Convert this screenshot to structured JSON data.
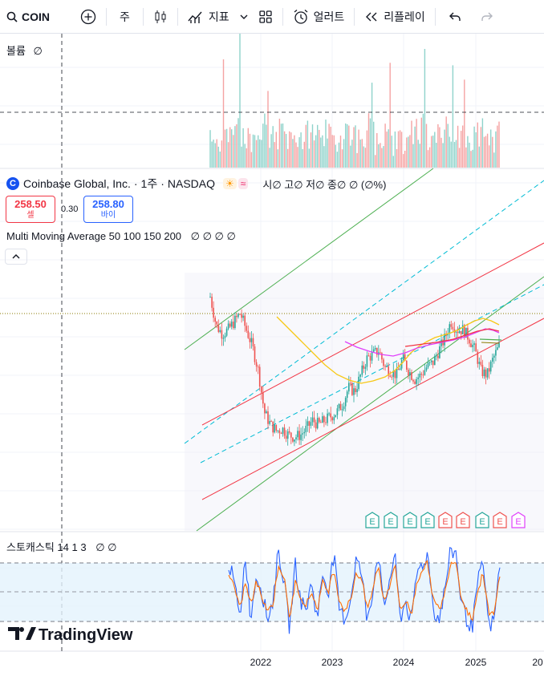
{
  "toolbar": {
    "symbol": "COIN",
    "interval": "주",
    "indicators": "지표",
    "alert": "얼러트",
    "replay": "리플레이"
  },
  "volume_pane": {
    "label": "볼륨",
    "value": "∅"
  },
  "main_header": {
    "name": "Coinbase Global, Inc.",
    "interval": "1주",
    "exchange": "NASDAQ",
    "ohlc": "시∅ 고∅ 저∅ 종∅ ∅ (∅%)",
    "sell_price": "258.50",
    "sell_label": "셀",
    "spread": "0.30",
    "buy_price": "258.80",
    "buy_label": "바이",
    "ma_label": "Multi Moving Average 50 100 150 200",
    "ma_values": "∅ ∅ ∅ ∅"
  },
  "stoch_pane": {
    "label": "스토캐스틱 14 1 3",
    "values": "∅ ∅"
  },
  "earnings_markers": [
    "E",
    "E",
    "E",
    "E",
    "E",
    "E",
    "E",
    "E",
    "E"
  ],
  "branding": "TradingView",
  "colors": {
    "up": "#26a69a",
    "down": "#ef5350",
    "channel_red": "#f23645",
    "channel_green": "#4caf50",
    "channel_blue": "#00bcd4",
    "ma50": "#f7c815",
    "ma100": "#e040fb",
    "ma150": "#f23645",
    "ma200": "#4caf50",
    "stoch_k": "#2962ff",
    "stoch_d": "#ff6d00",
    "stoch_band": "#e3f2fd"
  },
  "chart_data": {
    "type": "line",
    "x_axis_ticks": [
      "2022",
      "2023",
      "2024",
      "2025",
      "20"
    ],
    "series": [
      {
        "values": [
          380,
          310,
          290,
          300,
          320,
          340,
          300,
          260,
          200,
          100,
          70,
          55,
          60,
          45,
          40,
          45,
          60,
          80,
          70,
          80,
          90,
          100,
          120,
          160,
          150,
          190,
          230,
          240,
          250,
          210,
          200,
          190,
          230,
          200,
          180,
          190,
          210,
          220,
          250,
          280,
          320,
          300,
          300,
          280,
          250,
          200,
          190,
          230,
          260
        ]
      },
      {
        "values": [
          80,
          60,
          20,
          90,
          20,
          70,
          50,
          20,
          40,
          95,
          60,
          10,
          80,
          40,
          30,
          60,
          20,
          70,
          50,
          90,
          30,
          20,
          40,
          85,
          70,
          20,
          50,
          95,
          30,
          60,
          90,
          20,
          40,
          15,
          70,
          80,
          90,
          30,
          20,
          50,
          90,
          95,
          40,
          20,
          10,
          60,
          80,
          10,
          20,
          80
        ]
      },
      {
        "values": [
          70,
          55,
          30,
          60,
          35,
          60,
          45,
          30,
          35,
          80,
          65,
          20,
          60,
          45,
          35,
          50,
          30,
          60,
          50,
          75,
          40,
          30,
          40,
          70,
          65,
          30,
          50,
          80,
          40,
          55,
          80,
          30,
          40,
          25,
          60,
          75,
          80,
          40,
          30,
          45,
          80,
          85,
          45,
          30,
          20,
          50,
          70,
          25,
          25,
          70
        ]
      }
    ]
  }
}
